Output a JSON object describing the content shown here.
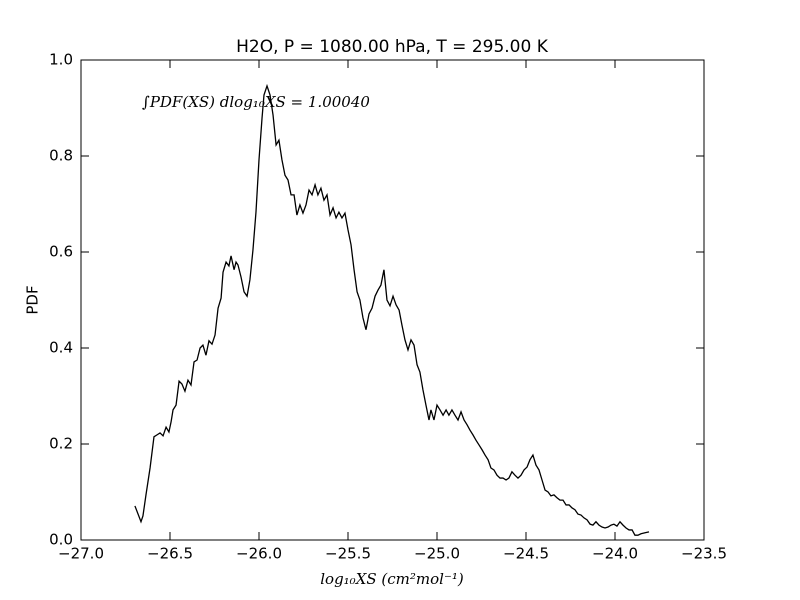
{
  "chart_data": {
    "type": "line",
    "title": "H2O, P = 1080.00 hPa, T = 295.00 K",
    "xlabel": "log₁₀XS (cm²mol⁻¹)",
    "ylabel": "PDF",
    "annotation": "∫PDF(XS) dlog₁₀XS = 1.00040",
    "xlim": [
      -27,
      -23.5
    ],
    "ylim": [
      0,
      1
    ],
    "xticks": [
      {
        "value": -27,
        "label": "−27.0"
      },
      {
        "value": -26.5,
        "label": "−26.5"
      },
      {
        "value": -26,
        "label": "−26.0"
      },
      {
        "value": -25.5,
        "label": "−25.5"
      },
      {
        "value": -25,
        "label": "−25.0"
      },
      {
        "value": -24.5,
        "label": "−24.5"
      },
      {
        "value": -24,
        "label": "−24.0"
      },
      {
        "value": -23.5,
        "label": "−23.5"
      }
    ],
    "yticks": [
      {
        "value": 0,
        "label": "0.0"
      },
      0.2,
      0.4,
      0.6,
      0.8,
      {
        "value": 1,
        "label": "1.0"
      }
    ],
    "color": "#000000",
    "x": [
      -26.697,
      -26.663,
      -26.652,
      -26.635,
      -26.612,
      -26.59,
      -26.573,
      -26.556,
      -26.539,
      -26.522,
      -26.506,
      -26.494,
      -26.483,
      -26.466,
      -26.449,
      -26.433,
      -26.416,
      -26.399,
      -26.382,
      -26.365,
      -26.348,
      -26.331,
      -26.315,
      -26.298,
      -26.281,
      -26.264,
      -26.247,
      -26.23,
      -26.213,
      -26.202,
      -26.185,
      -26.169,
      -26.157,
      -26.14,
      -26.129,
      -26.118,
      -26.101,
      -26.084,
      -26.067,
      -26.051,
      -26.034,
      -26.017,
      -26.0,
      -25.983,
      -25.972,
      -25.955,
      -25.938,
      -25.921,
      -25.904,
      -25.888,
      -25.871,
      -25.854,
      -25.837,
      -25.82,
      -25.803,
      -25.787,
      -25.77,
      -25.753,
      -25.736,
      -25.719,
      -25.702,
      -25.685,
      -25.669,
      -25.652,
      -25.635,
      -25.618,
      -25.601,
      -25.584,
      -25.567,
      -25.551,
      -25.534,
      -25.517,
      -25.5,
      -25.483,
      -25.466,
      -25.449,
      -25.433,
      -25.416,
      -25.399,
      -25.382,
      -25.365,
      -25.348,
      -25.331,
      -25.315,
      -25.298,
      -25.281,
      -25.264,
      -25.247,
      -25.23,
      -25.213,
      -25.197,
      -25.18,
      -25.163,
      -25.146,
      -25.129,
      -25.112,
      -25.096,
      -25.079,
      -25.062,
      -25.045,
      -25.034,
      -25.017,
      -25.0,
      -24.983,
      -24.966,
      -24.949,
      -24.933,
      -24.916,
      -24.899,
      -24.882,
      -24.865,
      -24.848,
      -24.831,
      -24.815,
      -24.798,
      -24.781,
      -24.764,
      -24.747,
      -24.73,
      -24.713,
      -24.697,
      -24.68,
      -24.663,
      -24.646,
      -24.629,
      -24.612,
      -24.596,
      -24.579,
      -24.562,
      -24.545,
      -24.528,
      -24.511,
      -24.494,
      -24.478,
      -24.461,
      -24.444,
      -24.427,
      -24.41,
      -24.393,
      -24.376,
      -24.36,
      -24.343,
      -24.326,
      -24.309,
      -24.292,
      -24.275,
      -24.258,
      -24.242,
      -24.225,
      -24.208,
      -24.191,
      -24.174,
      -24.157,
      -24.14,
      -24.124,
      -24.107,
      -24.09,
      -24.073,
      -24.056,
      -24.039,
      -24.022,
      -24.006,
      -23.989,
      -23.972,
      -23.955,
      -23.938,
      -23.921,
      -23.904,
      -23.888,
      -23.871,
      -23.854,
      -23.831,
      -23.809
    ],
    "values": [
      0.071,
      0.038,
      0.05,
      0.094,
      0.15,
      0.215,
      0.219,
      0.223,
      0.217,
      0.235,
      0.225,
      0.246,
      0.271,
      0.281,
      0.331,
      0.325,
      0.31,
      0.333,
      0.323,
      0.371,
      0.375,
      0.4,
      0.406,
      0.385,
      0.415,
      0.408,
      0.427,
      0.483,
      0.504,
      0.558,
      0.579,
      0.571,
      0.592,
      0.563,
      0.579,
      0.573,
      0.548,
      0.517,
      0.508,
      0.542,
      0.604,
      0.683,
      0.792,
      0.879,
      0.927,
      0.946,
      0.927,
      0.885,
      0.823,
      0.833,
      0.792,
      0.76,
      0.75,
      0.719,
      0.719,
      0.677,
      0.698,
      0.681,
      0.698,
      0.729,
      0.719,
      0.74,
      0.719,
      0.733,
      0.708,
      0.719,
      0.677,
      0.692,
      0.671,
      0.683,
      0.671,
      0.681,
      0.646,
      0.615,
      0.563,
      0.517,
      0.5,
      0.463,
      0.438,
      0.471,
      0.483,
      0.508,
      0.521,
      0.531,
      0.563,
      0.5,
      0.488,
      0.508,
      0.49,
      0.479,
      0.448,
      0.417,
      0.396,
      0.417,
      0.406,
      0.365,
      0.35,
      0.313,
      0.281,
      0.25,
      0.271,
      0.25,
      0.281,
      0.271,
      0.26,
      0.271,
      0.26,
      0.271,
      0.26,
      0.25,
      0.267,
      0.25,
      0.24,
      0.229,
      0.219,
      0.208,
      0.198,
      0.188,
      0.177,
      0.167,
      0.15,
      0.146,
      0.135,
      0.129,
      0.129,
      0.125,
      0.129,
      0.142,
      0.135,
      0.129,
      0.135,
      0.146,
      0.152,
      0.167,
      0.177,
      0.156,
      0.146,
      0.125,
      0.104,
      0.1,
      0.092,
      0.094,
      0.088,
      0.083,
      0.083,
      0.073,
      0.073,
      0.067,
      0.063,
      0.054,
      0.052,
      0.046,
      0.042,
      0.033,
      0.031,
      0.038,
      0.031,
      0.027,
      0.025,
      0.027,
      0.031,
      0.033,
      0.029,
      0.038,
      0.031,
      0.025,
      0.021,
      0.021,
      0.01,
      0.01,
      0.013,
      0.015,
      0.017
    ]
  }
}
